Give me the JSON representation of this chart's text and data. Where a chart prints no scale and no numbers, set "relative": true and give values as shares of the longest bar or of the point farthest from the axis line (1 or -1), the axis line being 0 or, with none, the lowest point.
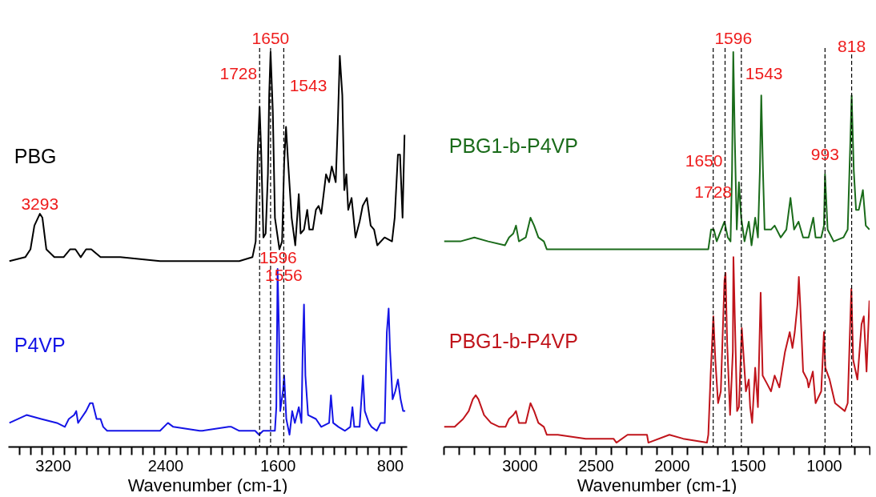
{
  "chart_data": [
    {
      "type": "line",
      "xlabel": "Wavenumber (cm-1)",
      "relative": true,
      "xlim": [
        3520,
        680
      ],
      "xticks": [
        {
          "value": 3440,
          "label": null
        },
        {
          "value": 3360,
          "label": null
        },
        {
          "value": 3280,
          "label": null
        },
        3200,
        {
          "value": 3120,
          "label": null
        },
        {
          "value": 3040,
          "label": null
        },
        {
          "value": 2960,
          "label": null
        },
        {
          "value": 2880,
          "label": null
        },
        {
          "value": 2800,
          "label": null
        },
        {
          "value": 2720,
          "label": null
        },
        {
          "value": 2640,
          "label": null
        },
        {
          "value": 2560,
          "label": null
        },
        {
          "value": 2480,
          "label": null
        },
        2400,
        {
          "value": 2320,
          "label": null
        },
        {
          "value": 2240,
          "label": null
        },
        {
          "value": 2160,
          "label": null
        },
        {
          "value": 2080,
          "label": null
        },
        {
          "value": 2000,
          "label": null
        },
        {
          "value": 1920,
          "label": null
        },
        {
          "value": 1840,
          "label": null
        },
        {
          "value": 1760,
          "label": null
        },
        {
          "value": 1680,
          "label": null
        },
        1600,
        {
          "value": 1520,
          "label": null
        },
        {
          "value": 1440,
          "label": null
        },
        {
          "value": 1360,
          "label": null
        },
        {
          "value": 1280,
          "label": null
        },
        {
          "value": 1200,
          "label": null
        },
        {
          "value": 1120,
          "label": null
        },
        {
          "value": 1040,
          "label": null
        },
        {
          "value": 960,
          "label": null
        },
        {
          "value": 880,
          "label": null
        },
        800,
        {
          "value": 720,
          "label": null
        }
      ],
      "series": [
        {
          "name": "PBG",
          "color": "#000000",
          "x": [
            3510,
            3397,
            3360,
            3332,
            3293,
            3275,
            3247,
            3190,
            3124,
            3077,
            3040,
            3002,
            2964,
            2927,
            2861,
            2720,
            2437,
            2155,
            1873,
            1779,
            1756,
            1741,
            1728,
            1717,
            1701,
            1685,
            1669,
            1660,
            1650,
            1634,
            1619,
            1587,
            1568,
            1553,
            1540,
            1525,
            1500,
            1474,
            1449,
            1436,
            1412,
            1389,
            1374,
            1349,
            1327,
            1308,
            1289,
            1255,
            1233,
            1214,
            1186,
            1171,
            1157,
            1139,
            1125,
            1110,
            1097,
            1073,
            1045,
            1016,
            994,
            964,
            937,
            913,
            890,
            838,
            785,
            766,
            743,
            728,
            710,
            696
          ],
          "values": [
            0.47,
            0.48,
            0.5,
            0.56,
            0.59,
            0.58,
            0.5,
            0.48,
            0.48,
            0.5,
            0.5,
            0.48,
            0.5,
            0.5,
            0.48,
            0.48,
            0.47,
            0.47,
            0.47,
            0.48,
            0.52,
            0.75,
            0.86,
            0.75,
            0.53,
            0.54,
            0.69,
            0.89,
            1.0,
            0.85,
            0.58,
            0.5,
            0.52,
            0.72,
            0.81,
            0.72,
            0.58,
            0.51,
            0.64,
            0.54,
            0.55,
            0.6,
            0.55,
            0.55,
            0.6,
            0.61,
            0.59,
            0.69,
            0.67,
            0.71,
            0.67,
            0.82,
            0.99,
            0.89,
            0.65,
            0.69,
            0.6,
            0.63,
            0.53,
            0.57,
            0.61,
            0.63,
            0.56,
            0.55,
            0.51,
            0.53,
            0.52,
            0.58,
            0.74,
            0.74,
            0.58,
            0.79
          ]
        },
        {
          "name": "P4VP",
          "color": "#1414e6",
          "x": [
            3510,
            3388,
            3284,
            3172,
            3115,
            3087,
            3049,
            3034,
            3021,
            3002,
            2964,
            2936,
            2917,
            2889,
            2861,
            2842,
            2814,
            2626,
            2437,
            2381,
            2343,
            2155,
            2136,
            1948,
            1929,
            1873,
            1760,
            1732,
            1703,
            1647,
            1619,
            1609,
            1600,
            1590,
            1581,
            1562,
            1553,
            1538,
            1515,
            1496,
            1477,
            1449,
            1430,
            1421,
            1412,
            1402,
            1383,
            1327,
            1289,
            1233,
            1220,
            1204,
            1167,
            1120,
            1082,
            1067,
            1054,
            1016,
            992,
            979,
            950,
            931,
            894,
            866,
            837,
            822,
            809,
            800,
            781,
            762,
            743,
            724,
            706,
            691
          ],
          "values": [
            0.06,
            0.08,
            0.07,
            0.06,
            0.05,
            0.07,
            0.08,
            0.09,
            0.06,
            0.07,
            0.09,
            0.11,
            0.11,
            0.07,
            0.07,
            0.05,
            0.04,
            0.04,
            0.04,
            0.06,
            0.05,
            0.04,
            0.04,
            0.05,
            0.05,
            0.04,
            0.04,
            0.03,
            0.04,
            0.04,
            0.04,
            0.1,
            0.45,
            0.29,
            0.09,
            0.14,
            0.18,
            0.07,
            0.03,
            0.09,
            0.06,
            0.1,
            0.06,
            0.25,
            0.36,
            0.18,
            0.08,
            0.07,
            0.05,
            0.06,
            0.13,
            0.06,
            0.05,
            0.04,
            0.05,
            0.1,
            0.05,
            0.05,
            0.18,
            0.09,
            0.06,
            0.05,
            0.04,
            0.06,
            0.06,
            0.29,
            0.35,
            0.25,
            0.12,
            0.14,
            0.17,
            0.12,
            0.09,
            0.09
          ]
        }
      ],
      "ref_lines": [
        {
          "axis": "x",
          "value": 1728,
          "color": "#000000",
          "line_style": "dashed"
        },
        {
          "axis": "x",
          "value": 1650,
          "color": "#000000",
          "line_style": "dashed"
        },
        {
          "axis": "x",
          "value": 1556,
          "color": "#000000",
          "line_style": "dashed"
        }
      ],
      "annotations": [
        {
          "text": "3293",
          "x": 3293,
          "y": 0.59
        },
        {
          "text": "1728",
          "x": 1728,
          "y": 0.92
        },
        {
          "text": "1650",
          "x": 1650,
          "y": 1.01
        },
        {
          "text": "1543",
          "x": 1543,
          "y": 0.89
        },
        {
          "text": "1596",
          "x": 1596,
          "y": 0.455
        },
        {
          "text": "1556",
          "x": 1556,
          "y": 0.41
        }
      ]
    },
    {
      "type": "line",
      "xlabel": "Wavenumber (cm-1)",
      "relative": true,
      "xlim": [
        3500,
        700
      ],
      "xticks": [
        {
          "value": 3500,
          "label": null
        },
        {
          "value": 3400,
          "label": null
        },
        {
          "value": 3300,
          "label": null
        },
        {
          "value": 3200,
          "label": null
        },
        {
          "value": 3100,
          "label": null
        },
        3000,
        {
          "value": 2900,
          "label": null
        },
        {
          "value": 2800,
          "label": null
        },
        {
          "value": 2700,
          "label": null
        },
        {
          "value": 2600,
          "label": null
        },
        2500,
        {
          "value": 2400,
          "label": null
        },
        {
          "value": 2300,
          "label": null
        },
        {
          "value": 2200,
          "label": null
        },
        {
          "value": 2100,
          "label": null
        },
        2000,
        {
          "value": 1900,
          "label": null
        },
        {
          "value": 1800,
          "label": null
        },
        {
          "value": 1700,
          "label": null
        },
        {
          "value": 1600,
          "label": null
        },
        1500,
        {
          "value": 1400,
          "label": null
        },
        {
          "value": 1300,
          "label": null
        },
        {
          "value": 1200,
          "label": null
        },
        {
          "value": 1100,
          "label": null
        },
        1000,
        {
          "value": 900,
          "label": null
        },
        {
          "value": 800,
          "label": null
        },
        {
          "value": 700,
          "label": null
        }
      ],
      "series": [
        {
          "name": "PBG1-b-P4VP",
          "color": "#1a6b1a",
          "x": [
            3496,
            3390,
            3298,
            3207,
            3097,
            3070,
            3042,
            3024,
            3005,
            2960,
            2929,
            2905,
            2877,
            2841,
            2822,
            2657,
            2383,
            2291,
            2145,
            1925,
            1833,
            1760,
            1742,
            1724,
            1705,
            1654,
            1632,
            1614,
            1604,
            1596,
            1586,
            1573,
            1559,
            1544,
            1522,
            1494,
            1476,
            1452,
            1434,
            1421,
            1412,
            1401,
            1390,
            1348,
            1324,
            1284,
            1247,
            1220,
            1196,
            1167,
            1137,
            1101,
            1070,
            1055,
            1018,
            1000,
            993,
            976,
            936,
            872,
            844,
            826,
            818,
            804,
            789,
            771,
            744,
            725,
            701
          ],
          "values": [
            0.52,
            0.52,
            0.53,
            0.52,
            0.51,
            0.53,
            0.54,
            0.56,
            0.52,
            0.53,
            0.58,
            0.56,
            0.53,
            0.52,
            0.5,
            0.5,
            0.5,
            0.5,
            0.5,
            0.5,
            0.5,
            0.5,
            0.55,
            0.55,
            0.52,
            0.57,
            0.53,
            0.52,
            0.7,
            1.0,
            0.78,
            0.55,
            0.67,
            0.58,
            0.52,
            0.57,
            0.51,
            0.58,
            0.53,
            0.7,
            0.89,
            0.7,
            0.55,
            0.55,
            0.56,
            0.53,
            0.55,
            0.63,
            0.55,
            0.57,
            0.53,
            0.53,
            0.58,
            0.53,
            0.53,
            0.56,
            0.69,
            0.55,
            0.52,
            0.53,
            0.55,
            0.78,
            0.89,
            0.7,
            0.6,
            0.6,
            0.65,
            0.56,
            0.55
          ]
        },
        {
          "name": "PBG1-b-P4VP",
          "color": "#c0141b",
          "x": [
            3496,
            3427,
            3372,
            3335,
            3308,
            3289,
            3271,
            3234,
            3189,
            3134,
            3093,
            3070,
            3042,
            3024,
            3005,
            2960,
            2929,
            2905,
            2877,
            2841,
            2822,
            2749,
            2566,
            2383,
            2364,
            2291,
            2163,
            2154,
            2016,
            1925,
            1769,
            1760,
            1745,
            1727,
            1714,
            1696,
            1678,
            1654,
            1647,
            1636,
            1617,
            1599,
            1595,
            1586,
            1571,
            1559,
            1540,
            1513,
            1494,
            1485,
            1472,
            1452,
            1434,
            1416,
            1403,
            1375,
            1348,
            1324,
            1293,
            1256,
            1225,
            1207,
            1192,
            1174,
            1165,
            1156,
            1137,
            1110,
            1101,
            1073,
            1055,
            1018,
            1000,
            991,
            963,
            927,
            863,
            844,
            826,
            820,
            808,
            780,
            753,
            738,
            720,
            701
          ],
          "values": [
            0.05,
            0.05,
            0.07,
            0.09,
            0.12,
            0.13,
            0.12,
            0.08,
            0.06,
            0.05,
            0.05,
            0.07,
            0.08,
            0.09,
            0.06,
            0.06,
            0.11,
            0.09,
            0.06,
            0.05,
            0.03,
            0.03,
            0.02,
            0.02,
            0.01,
            0.03,
            0.03,
            0.01,
            0.03,
            0.02,
            0.01,
            0.03,
            0.18,
            0.33,
            0.22,
            0.11,
            0.14,
            0.42,
            0.44,
            0.26,
            0.08,
            0.24,
            0.48,
            0.33,
            0.09,
            0.1,
            0.3,
            0.14,
            0.17,
            0.1,
            0.06,
            0.2,
            0.1,
            0.39,
            0.18,
            0.16,
            0.14,
            0.18,
            0.15,
            0.24,
            0.29,
            0.25,
            0.29,
            0.36,
            0.43,
            0.36,
            0.19,
            0.17,
            0.15,
            0.19,
            0.11,
            0.14,
            0.29,
            0.2,
            0.17,
            0.11,
            0.09,
            0.11,
            0.33,
            0.4,
            0.22,
            0.17,
            0.31,
            0.33,
            0.19,
            0.37
          ]
        }
      ],
      "ref_lines": [
        {
          "axis": "x",
          "value": 1728,
          "color": "#000000",
          "line_style": "dashed"
        },
        {
          "axis": "x",
          "value": 1650,
          "color": "#000000",
          "line_style": "dashed"
        },
        {
          "axis": "x",
          "value": 1543,
          "color": "#000000",
          "line_style": "dashed"
        },
        {
          "axis": "x",
          "value": 993,
          "color": "#000000",
          "line_style": "dashed"
        },
        {
          "axis": "x",
          "value": 818,
          "color": "#000000",
          "line_style": "dashed"
        }
      ],
      "annotations": [
        {
          "text": "1728",
          "x": 1728,
          "y": 0.62
        },
        {
          "text": "1650",
          "x": 1650,
          "y": 0.7
        },
        {
          "text": "1596",
          "x": 1596,
          "y": 1.01
        },
        {
          "text": "1543",
          "x": 1543,
          "y": 0.92
        },
        {
          "text": "993",
          "x": 993,
          "y": 0.715
        },
        {
          "text": "818",
          "x": 818,
          "y": 0.99
        }
      ]
    }
  ]
}
